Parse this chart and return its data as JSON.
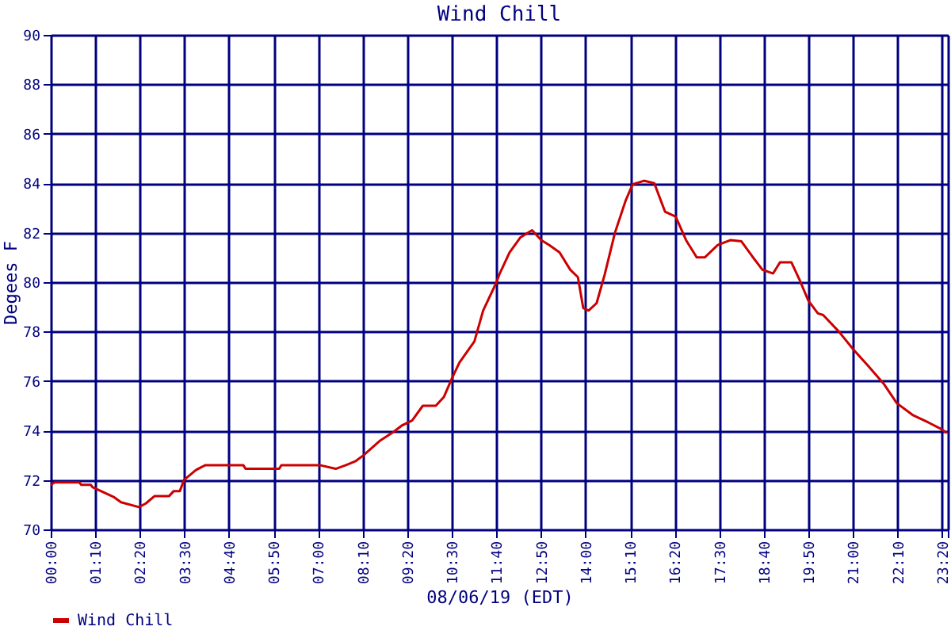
{
  "chart_data": {
    "type": "line",
    "title": "Wind Chill",
    "xlabel": "08/06/19 (EDT)",
    "ylabel": "Degees F",
    "xlim": [
      0,
      23.4833
    ],
    "xticks": [
      {
        "value": 0,
        "label": "00:00"
      },
      {
        "value": 1.1667,
        "label": "01:10"
      },
      {
        "value": 2.3333,
        "label": "02:20"
      },
      {
        "value": 3.5,
        "label": "03:30"
      },
      {
        "value": 4.6667,
        "label": "04:40"
      },
      {
        "value": 5.8333,
        "label": "05:50"
      },
      {
        "value": 7,
        "label": "07:00"
      },
      {
        "value": 8.1667,
        "label": "08:10"
      },
      {
        "value": 9.3333,
        "label": "09:20"
      },
      {
        "value": 10.5,
        "label": "10:30"
      },
      {
        "value": 11.6667,
        "label": "11:40"
      },
      {
        "value": 12.8333,
        "label": "12:50"
      },
      {
        "value": 14,
        "label": "14:00"
      },
      {
        "value": 15.1667,
        "label": "15:10"
      },
      {
        "value": 16.3333,
        "label": "16:20"
      },
      {
        "value": 17.5,
        "label": "17:30"
      },
      {
        "value": 18.6667,
        "label": "18:40"
      },
      {
        "value": 19.8333,
        "label": "19:50"
      },
      {
        "value": 21,
        "label": "21:00"
      },
      {
        "value": 22.1667,
        "label": "22:10"
      },
      {
        "value": 23.3333,
        "label": "23:20"
      },
      {
        "value": 23.4833,
        "label": null
      }
    ],
    "ylim": [
      70,
      90
    ],
    "yticks": [
      70,
      72,
      74,
      76,
      78,
      80,
      82,
      84,
      86,
      88,
      90
    ],
    "grid": true,
    "legend": "bottom",
    "marker": "none",
    "line_style": "solid",
    "series": [
      {
        "name": "Wind Chill",
        "color": "#cc0000",
        "x": [
          0,
          0.1,
          0.75,
          0.8,
          1.05,
          1.1,
          1.38,
          1.66,
          1.84,
          2.31,
          2.49,
          2.72,
          3.1,
          3.22,
          3.38,
          3.49,
          3.8,
          4.05,
          5.04,
          5.1,
          5.98,
          6.04,
          7.04,
          7.46,
          7.73,
          7.97,
          8.19,
          8.63,
          8.98,
          9.19,
          9.46,
          9.74,
          10.08,
          10.29,
          10.5,
          10.7,
          11.09,
          11.32,
          11.67,
          11.74,
          12.01,
          12.29,
          12.6,
          12.84,
          13.05,
          13.32,
          13.6,
          13.8,
          13.94,
          14.08,
          14.29,
          14.5,
          14.77,
          15.05,
          15.23,
          15.53,
          15.8,
          16.08,
          16.36,
          16.63,
          16.91,
          17.12,
          17.46,
          17.8,
          18.08,
          18.36,
          18.63,
          18.91,
          19.09,
          19.39,
          19.6,
          19.83,
          20.08,
          20.22,
          20.63,
          21.02,
          21.39,
          21.8,
          22.15,
          22.56,
          22.98,
          23.26,
          23.46
        ],
        "values": [
          71.8,
          71.9,
          71.9,
          71.8,
          71.8,
          71.7,
          71.5,
          71.3,
          71.1,
          70.9,
          71.05,
          71.35,
          71.35,
          71.55,
          71.55,
          72.0,
          72.4,
          72.6,
          72.6,
          72.45,
          72.45,
          72.6,
          72.6,
          72.45,
          72.6,
          72.75,
          73.0,
          73.6,
          73.95,
          74.2,
          74.4,
          75.0,
          75.0,
          75.35,
          76.1,
          76.75,
          77.6,
          78.85,
          80.0,
          80.3,
          81.2,
          81.8,
          82.1,
          81.7,
          81.5,
          81.2,
          80.5,
          80.2,
          78.95,
          78.85,
          79.15,
          80.3,
          82.0,
          83.3,
          83.95,
          84.1,
          84.0,
          82.85,
          82.65,
          81.7,
          81.0,
          81.0,
          81.5,
          81.7,
          81.65,
          81.05,
          80.5,
          80.35,
          80.8,
          80.8,
          80.1,
          79.26,
          78.74,
          78.67,
          78.0,
          77.26,
          76.63,
          75.9,
          75.1,
          74.63,
          74.32,
          74.1,
          73.9
        ]
      }
    ]
  }
}
